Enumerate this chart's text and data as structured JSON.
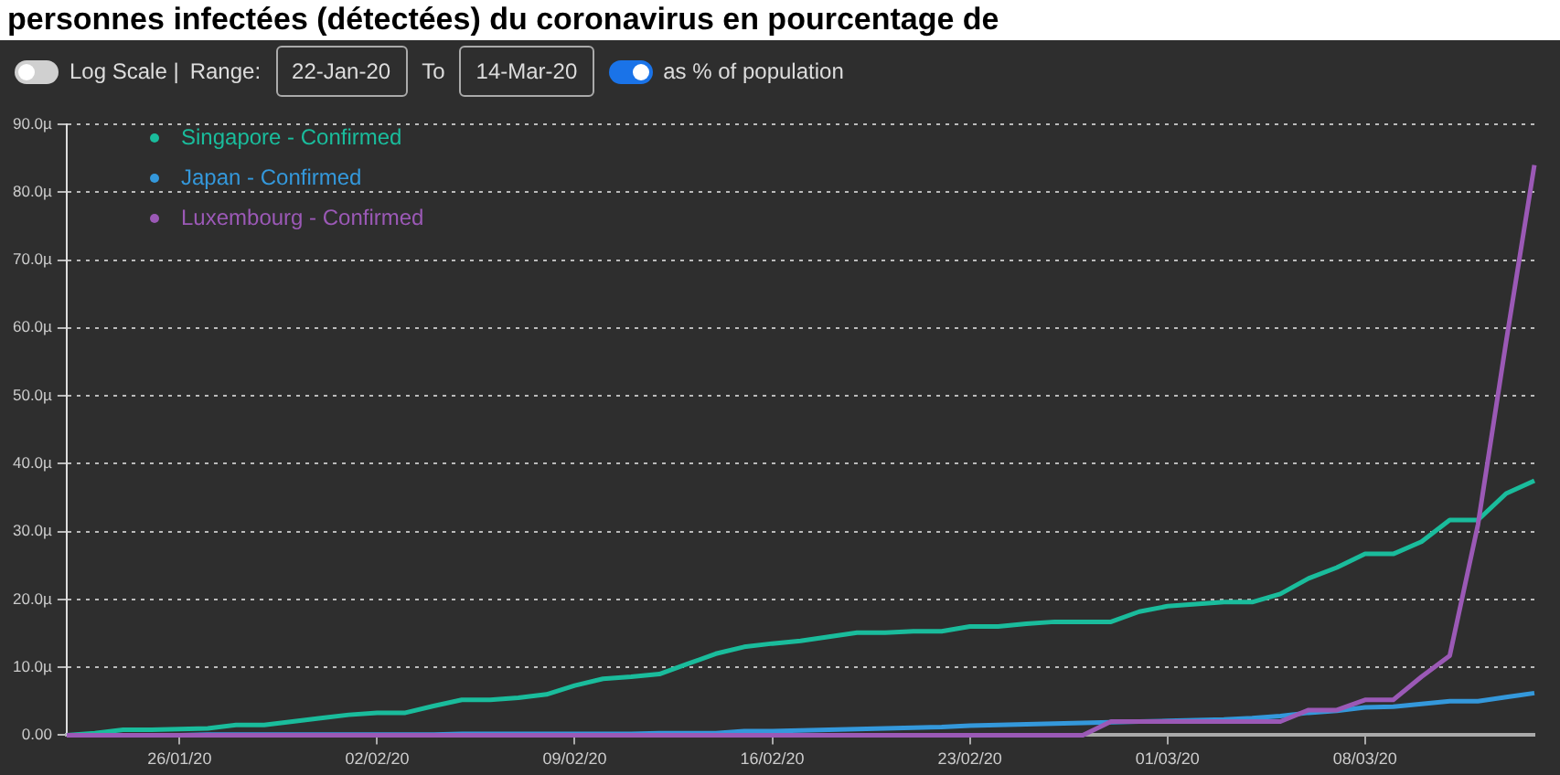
{
  "chart_data": {
    "type": "line",
    "title": "personnes infectées (détectées) du coronavirus en pourcentage de",
    "annotations": [
      "Log Scale |",
      "Range:",
      "22-Jan-20",
      "To",
      "14-Mar-20",
      "as % of population"
    ],
    "x": [
      "--01-22",
      "--01-23",
      "--01-24",
      "--01-25",
      "--01-26",
      "--01-27",
      "--01-28",
      "--01-29",
      "--01-30",
      "--01-31",
      "--02-01",
      "--02-02",
      "--02-03",
      "--02-04",
      "--02-05",
      "--02-06",
      "--02-07",
      "--02-08",
      "--02-09",
      "--02-10",
      "--02-11",
      "--02-12",
      "--02-13",
      "--02-14",
      "--02-15",
      "--02-16",
      "--02-17",
      "--02-18",
      "--02-19",
      "--02-20",
      "--02-21",
      "--02-22",
      "--02-23",
      "--02-24",
      "--02-25",
      "--02-26",
      "--02-27",
      "--02-28",
      "--02-29",
      "--03-01",
      "--03-02",
      "--03-03",
      "--03-04",
      "--03-05",
      "--03-06",
      "--03-07",
      "--03-08",
      "--03-09",
      "--03-10",
      "--03-11",
      "--03-12",
      "--03-13",
      "--03-14"
    ],
    "series": [
      {
        "name": "Singapore - Confirmed",
        "color": "#1abc9c",
        "values": [
          0,
          0.3,
          0.8,
          0.8,
          0.9,
          1.0,
          1.5,
          1.5,
          2.0,
          2.5,
          3.0,
          3.3,
          3.3,
          4.3,
          5.2,
          5.2,
          5.5,
          6.0,
          7.3,
          8.3,
          8.6,
          9.0,
          10.5,
          12.0,
          13.0,
          13.5,
          13.9,
          14.5,
          15.1,
          15.1,
          15.3,
          15.3,
          16.0,
          16.0,
          16.4,
          16.7,
          16.7,
          16.7,
          18.2,
          19.0,
          19.3,
          19.6,
          19.6,
          20.8,
          23.1,
          24.7,
          26.7,
          26.7,
          28.5,
          31.7,
          31.7,
          35.6,
          37.5
        ]
      },
      {
        "name": "Japan - Confirmed",
        "color": "#3498db",
        "values": [
          null,
          null,
          null,
          0,
          0,
          0.1,
          0.1,
          0.1,
          0.1,
          0.1,
          0.1,
          0.1,
          0.1,
          0.1,
          0.2,
          0.2,
          0.2,
          0.2,
          0.2,
          0.2,
          0.2,
          0.3,
          0.3,
          0.3,
          0.6,
          0.6,
          0.7,
          0.8,
          0.9,
          1.0,
          1.1,
          1.2,
          1.4,
          1.5,
          1.6,
          1.7,
          1.8,
          1.9,
          2.0,
          2.1,
          2.2,
          2.3,
          2.5,
          2.8,
          3.3,
          3.6,
          4.1,
          4.2,
          4.6,
          5.0,
          5.0,
          5.6,
          6.2
        ]
      },
      {
        "name": "Luxembourg - Confirmed",
        "color": "#9b59b6",
        "values": [
          0,
          0,
          0,
          0,
          0,
          0,
          0,
          0,
          0,
          0,
          0,
          0,
          0,
          0,
          0,
          0,
          0,
          0,
          0,
          0,
          0,
          0,
          0,
          0,
          0,
          0,
          0,
          0,
          0,
          0,
          0,
          0,
          0,
          0,
          0,
          0,
          0,
          2.0,
          2.0,
          2.0,
          2.0,
          2.0,
          2.0,
          2.0,
          3.7,
          3.7,
          5.2,
          5.2,
          8.6,
          11.7,
          31,
          58,
          84
        ]
      }
    ],
    "xlim": [
      "--01-22",
      "--03-14"
    ],
    "xticks": [
      {
        "value": "--01-26",
        "label": "26/01/20"
      },
      {
        "value": "--02-02",
        "label": "02/02/20"
      },
      {
        "value": "--02-09",
        "label": "09/02/20"
      },
      {
        "value": "--02-16",
        "label": "16/02/20"
      },
      {
        "value": "--02-23",
        "label": "23/02/20"
      },
      {
        "value": "--03-01",
        "label": "01/03/20"
      },
      {
        "value": "--03-08",
        "label": "08/03/20"
      }
    ],
    "ylim": [
      0,
      90
    ],
    "yticks": [
      {
        "value": 0,
        "label": "0.00"
      },
      {
        "value": 10,
        "label": "10.0µ"
      },
      {
        "value": 20,
        "label": "20.0µ"
      },
      {
        "value": 30,
        "label": "30.0µ"
      },
      {
        "value": 40,
        "label": "40.0µ"
      },
      {
        "value": 50,
        "label": "50.0µ"
      },
      {
        "value": 60,
        "label": "60.0µ"
      },
      {
        "value": 70,
        "label": "70.0µ"
      },
      {
        "value": 80,
        "label": "80.0µ"
      },
      {
        "value": 90,
        "label": "90.0µ"
      }
    ],
    "grid": "y",
    "legend": "top left",
    "marker": "none",
    "line_style": "solid"
  }
}
